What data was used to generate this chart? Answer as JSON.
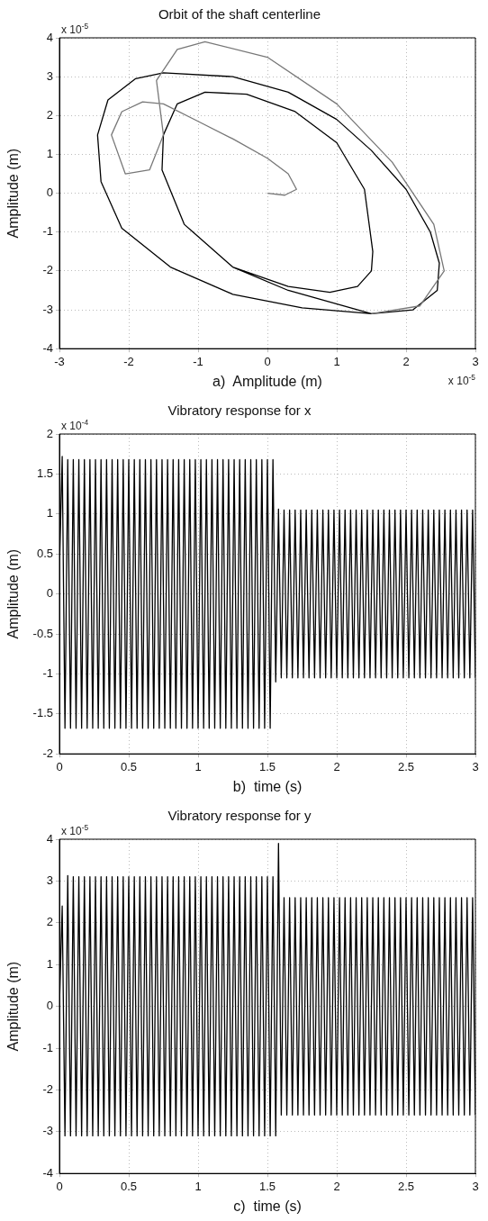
{
  "chart_data": [
    {
      "type": "line",
      "title": "Orbit of the shaft centerline",
      "xlabel": "a)  Amplitude (m)",
      "ylabel": "Amplitude (m)",
      "xlim": [
        -3,
        3
      ],
      "ylim": [
        -4,
        4
      ],
      "xticks": [
        -3,
        -2,
        -1,
        0,
        1,
        2,
        3
      ],
      "yticks": [
        -4,
        -3,
        -2,
        -1,
        0,
        1,
        2,
        3,
        4
      ],
      "grid": true,
      "legend": false,
      "marker": "none",
      "annotations": [
        "x 10$^{-5}$",
        "x 10$^{-5}$"
      ],
      "series": [
        {
          "color": "#777777",
          "x": [
            0,
            0.25,
            0.42,
            0.3,
            0,
            -0.5,
            -1,
            -1.5,
            -1.8,
            -2.1,
            -2.25,
            -2.05,
            -1.7,
            -1.5,
            -1.55,
            -1.6,
            -1.3,
            -0.9,
            0,
            1,
            1.8,
            2.4,
            2.55,
            2.2,
            1.5
          ],
          "values": [
            0,
            -0.05,
            0.1,
            0.5,
            0.9,
            1.4,
            1.85,
            2.3,
            2.35,
            2.1,
            1.5,
            0.5,
            0.6,
            1.5,
            2.2,
            2.9,
            3.7,
            3.9,
            3.5,
            2.3,
            0.8,
            -0.8,
            -2,
            -2.9,
            -3.1
          ]
        },
        {
          "color": "#000000",
          "x": [
            1.5,
            0.5,
            -0.5,
            -1.4,
            -2.1,
            -2.4,
            -2.45,
            -2.3,
            -1.9,
            -1.5,
            -0.5,
            0.3,
            1,
            1.5,
            2,
            2.35,
            2.48,
            2.45,
            2.1,
            1.5,
            0.5,
            -0.5,
            -1.4,
            -2.1,
            -2.4,
            -2.45,
            -2.3,
            -1.9,
            -1.5,
            -0.5,
            0.3,
            1,
            1.5,
            2,
            2.35,
            2.48,
            2.45,
            2.1,
            1.5,
            0.9,
            0.3,
            -0.5,
            -1.2,
            -1.52,
            -1.5,
            -1.3,
            -0.9,
            -0.3,
            0.4,
            1,
            1.4,
            1.52,
            1.5,
            1.3,
            0.9,
            0.3,
            -0.5,
            -1.2,
            -1.52,
            -1.5,
            -1.3,
            -0.9,
            -0.3,
            0.4,
            1,
            1.4,
            1.52
          ],
          "values": [
            -3.1,
            -2.95,
            -2.6,
            -1.9,
            -0.9,
            0.3,
            1.5,
            2.4,
            2.95,
            3.1,
            3,
            2.6,
            1.9,
            1.1,
            0.1,
            -1,
            -1.8,
            -2.5,
            -3,
            -3.1,
            -2.95,
            -2.6,
            -1.9,
            -0.9,
            0.3,
            1.5,
            2.4,
            2.95,
            3.1,
            3,
            2.6,
            1.9,
            1.1,
            0.1,
            -1,
            -1.8,
            -2.5,
            -3,
            -3.1,
            -2.8,
            -2.5,
            -1.9,
            -0.8,
            0.6,
            1.5,
            2.3,
            2.6,
            2.55,
            2.1,
            1.3,
            0.1,
            -1.5,
            -2,
            -2.4,
            -2.55,
            -2.4,
            -1.9,
            -0.8,
            0.6,
            1.5,
            2.3,
            2.6,
            2.55,
            2.1,
            1.3,
            0.1,
            -1.5
          ]
        }
      ]
    },
    {
      "type": "line",
      "title": "Vibratory response for x",
      "xlabel": "b)  time (s)",
      "ylabel": "Amplitude (m)",
      "xlim": [
        0,
        3
      ],
      "ylim": [
        -2,
        2
      ],
      "xticks": [
        0,
        0.5,
        1,
        1.5,
        2,
        2.5,
        3
      ],
      "yticks": [
        -2,
        -1.5,
        -1,
        -0.5,
        0,
        0.5,
        1,
        1.5,
        2
      ],
      "grid": true,
      "legend": false,
      "marker": "none",
      "annotations": [
        "x 10$^{-4}$"
      ],
      "x": [
        0,
        0.02,
        0.04,
        0.06,
        0.08,
        0.1,
        0.12,
        0.14,
        0.16,
        0.18,
        0.2,
        0.22,
        0.24,
        0.26,
        0.28,
        0.3,
        0.32,
        0.34,
        0.36,
        0.38,
        0.4,
        0.42,
        0.44,
        0.46,
        0.48,
        0.5,
        0.52,
        0.54,
        0.56,
        0.58,
        0.6,
        0.62,
        0.64,
        0.66,
        0.68,
        0.7,
        0.72,
        0.74,
        0.76,
        0.78,
        0.8,
        0.82,
        0.84,
        0.86,
        0.88,
        0.9,
        0.92,
        0.94,
        0.96,
        0.98,
        1,
        1.02,
        1.04,
        1.06,
        1.08,
        1.1,
        1.12,
        1.14,
        1.16,
        1.18,
        1.2,
        1.22,
        1.24,
        1.26,
        1.28,
        1.3,
        1.32,
        1.34,
        1.36,
        1.38,
        1.4,
        1.42,
        1.44,
        1.46,
        1.48,
        1.5,
        1.52,
        1.54,
        1.56,
        1.58,
        1.6,
        1.62,
        1.64,
        1.66,
        1.68,
        1.7,
        1.72,
        1.74,
        1.76,
        1.78,
        1.8,
        1.82,
        1.84,
        1.86,
        1.88,
        1.9,
        1.92,
        1.94,
        1.96,
        1.98,
        2,
        2.02,
        2.04,
        2.06,
        2.08,
        2.1,
        2.12,
        2.14,
        2.16,
        2.18,
        2.2,
        2.22,
        2.24,
        2.26,
        2.28,
        2.3,
        2.32,
        2.34,
        2.36,
        2.38,
        2.4,
        2.42,
        2.44,
        2.46,
        2.48,
        2.5,
        2.52,
        2.54,
        2.56,
        2.58,
        2.6,
        2.62,
        2.64,
        2.66,
        2.68,
        2.7,
        2.72,
        2.74,
        2.76,
        2.78,
        2.8,
        2.82,
        2.84,
        2.86,
        2.88,
        2.9,
        2.92,
        2.94,
        2.96,
        2.98,
        3
      ],
      "series": [
        {
          "color": "#000000",
          "values": [
            0.3,
            1.72,
            -1.68,
            1.68,
            -1.68,
            1.68,
            -1.68,
            1.68,
            -1.68,
            1.68,
            -1.68,
            1.68,
            -1.68,
            1.68,
            -1.68,
            1.68,
            -1.68,
            1.68,
            -1.68,
            1.68,
            -1.68,
            1.68,
            -1.68,
            1.68,
            -1.68,
            1.68,
            -1.68,
            1.68,
            -1.68,
            1.68,
            -1.68,
            1.68,
            -1.68,
            1.68,
            -1.68,
            1.68,
            -1.68,
            1.68,
            -1.68,
            1.68,
            -1.68,
            1.68,
            -1.68,
            1.68,
            -1.68,
            1.68,
            -1.68,
            1.68,
            -1.68,
            1.68,
            -1.68,
            1.68,
            -1.68,
            1.68,
            -1.68,
            1.68,
            -1.68,
            1.68,
            -1.68,
            1.68,
            -1.68,
            1.68,
            -1.68,
            1.68,
            -1.68,
            1.68,
            -1.68,
            1.68,
            -1.68,
            1.68,
            -1.68,
            1.68,
            -1.68,
            1.68,
            -1.68,
            1.68,
            -1.68,
            1.68,
            -1.1,
            1.06,
            -1.05,
            1.05,
            -1.05,
            1.05,
            -1.05,
            1.05,
            -1.05,
            1.05,
            -1.05,
            1.05,
            -1.05,
            1.05,
            -1.05,
            1.05,
            -1.05,
            1.05,
            -1.05,
            1.05,
            -1.05,
            1.05,
            -1.05,
            1.05,
            -1.05,
            1.05,
            -1.05,
            1.05,
            -1.05,
            1.05,
            -1.05,
            1.05,
            -1.05,
            1.05,
            -1.05,
            1.05,
            -1.05,
            1.05,
            -1.05,
            1.05,
            -1.05,
            1.05,
            -1.05,
            1.05,
            -1.05,
            1.05,
            -1.05,
            1.05,
            -1.05,
            1.05,
            -1.05,
            1.05,
            -1.05,
            1.05,
            -1.05,
            1.05,
            -1.05,
            1.05,
            -1.05,
            1.05,
            -1.05,
            1.05,
            -1.05,
            1.05,
            -1.05,
            1.05,
            -1.05,
            1.05,
            -1.05,
            1.05,
            -1.05,
            1.05,
            -1.05
          ]
        }
      ]
    },
    {
      "type": "line",
      "title": "Vibratory response for y",
      "xlabel": "c)  time (s)",
      "ylabel": "Amplitude (m)",
      "xlim": [
        0,
        3
      ],
      "ylim": [
        -4,
        4
      ],
      "xticks": [
        0,
        0.5,
        1,
        1.5,
        2,
        2.5,
        3
      ],
      "yticks": [
        -4,
        -3,
        -2,
        -1,
        0,
        1,
        2,
        3,
        4
      ],
      "grid": true,
      "legend": false,
      "marker": "none",
      "annotations": [
        "x 10$^{-5}$"
      ],
      "x": [
        0,
        0.02,
        0.04,
        0.06,
        0.08,
        0.1,
        0.12,
        0.14,
        0.16,
        0.18,
        0.2,
        0.22,
        0.24,
        0.26,
        0.28,
        0.3,
        0.32,
        0.34,
        0.36,
        0.38,
        0.4,
        0.42,
        0.44,
        0.46,
        0.48,
        0.5,
        0.52,
        0.54,
        0.56,
        0.58,
        0.6,
        0.62,
        0.64,
        0.66,
        0.68,
        0.7,
        0.72,
        0.74,
        0.76,
        0.78,
        0.8,
        0.82,
        0.84,
        0.86,
        0.88,
        0.9,
        0.92,
        0.94,
        0.96,
        0.98,
        1,
        1.02,
        1.04,
        1.06,
        1.08,
        1.1,
        1.12,
        1.14,
        1.16,
        1.18,
        1.2,
        1.22,
        1.24,
        1.26,
        1.28,
        1.3,
        1.32,
        1.34,
        1.36,
        1.38,
        1.4,
        1.42,
        1.44,
        1.46,
        1.48,
        1.5,
        1.52,
        1.54,
        1.56,
        1.58,
        1.6,
        1.62,
        1.64,
        1.66,
        1.68,
        1.7,
        1.72,
        1.74,
        1.76,
        1.78,
        1.8,
        1.82,
        1.84,
        1.86,
        1.88,
        1.9,
        1.92,
        1.94,
        1.96,
        1.98,
        2,
        2.02,
        2.04,
        2.06,
        2.08,
        2.1,
        2.12,
        2.14,
        2.16,
        2.18,
        2.2,
        2.22,
        2.24,
        2.26,
        2.28,
        2.3,
        2.32,
        2.34,
        2.36,
        2.38,
        2.4,
        2.42,
        2.44,
        2.46,
        2.48,
        2.5,
        2.52,
        2.54,
        2.56,
        2.58,
        2.6,
        2.62,
        2.64,
        2.66,
        2.68,
        2.7,
        2.72,
        2.74,
        2.76,
        2.78,
        2.8,
        2.82,
        2.84,
        2.86,
        2.88,
        2.9,
        2.92,
        2.94,
        2.96,
        2.98,
        3
      ],
      "series": [
        {
          "color": "#000000",
          "values": [
            0,
            2.4,
            -3.1,
            3.13,
            -3.1,
            3.1,
            -3.1,
            3.1,
            -3.1,
            3.1,
            -3.1,
            3.1,
            -3.1,
            3.1,
            -3.1,
            3.1,
            -3.1,
            3.1,
            -3.1,
            3.1,
            -3.1,
            3.1,
            -3.1,
            3.1,
            -3.1,
            3.1,
            -3.1,
            3.1,
            -3.1,
            3.1,
            -3.1,
            3.1,
            -3.1,
            3.1,
            -3.1,
            3.1,
            -3.1,
            3.1,
            -3.1,
            3.1,
            -3.1,
            3.1,
            -3.1,
            3.1,
            -3.1,
            3.1,
            -3.1,
            3.1,
            -3.1,
            3.1,
            -3.1,
            3.1,
            -3.1,
            3.1,
            -3.1,
            3.1,
            -3.1,
            3.1,
            -3.1,
            3.1,
            -3.1,
            3.1,
            -3.1,
            3.1,
            -3.1,
            3.1,
            -3.1,
            3.1,
            -3.1,
            3.1,
            -3.1,
            3.1,
            -3.1,
            3.1,
            -3.1,
            3.1,
            -3.1,
            3.1,
            -3.1,
            3.9,
            -2.6,
            2.6,
            -2.6,
            2.6,
            -2.6,
            2.6,
            -2.6,
            2.6,
            -2.6,
            2.6,
            -2.6,
            2.6,
            -2.6,
            2.6,
            -2.6,
            2.6,
            -2.6,
            2.6,
            -2.6,
            2.6,
            -2.6,
            2.6,
            -2.6,
            2.6,
            -2.6,
            2.6,
            -2.6,
            2.6,
            -2.6,
            2.6,
            -2.6,
            2.6,
            -2.6,
            2.6,
            -2.6,
            2.6,
            -2.6,
            2.6,
            -2.6,
            2.6,
            -2.6,
            2.6,
            -2.6,
            2.6,
            -2.6,
            2.6,
            -2.6,
            2.6,
            -2.6,
            2.6,
            -2.6,
            2.6,
            -2.6,
            2.6,
            -2.6,
            2.6,
            -2.6,
            2.6,
            -2.6,
            2.6,
            -2.6,
            2.6,
            -2.6,
            2.6,
            -2.6,
            2.6,
            -2.6,
            2.6,
            -2.6,
            2.6,
            -2.6
          ]
        }
      ]
    }
  ]
}
